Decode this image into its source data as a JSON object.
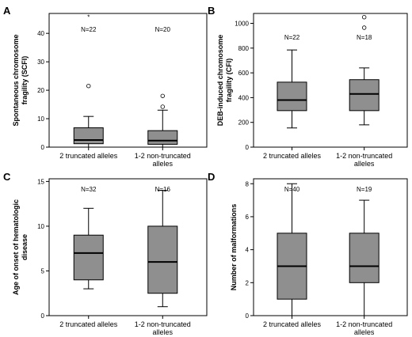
{
  "colors": {
    "box_fill": "#8f8f8f",
    "frame": "#000000",
    "background": "#ffffff"
  },
  "chart_data": [
    {
      "panel": "A",
      "type": "box",
      "ylabel": [
        "Spontaneous chromosome",
        "fragility (SCFI)"
      ],
      "ylim": [
        0,
        47
      ],
      "yticks": [
        0,
        10,
        20,
        30,
        40
      ],
      "categories": [
        [
          "2 truncated alleles"
        ],
        [
          "1-2 non-truncated",
          "alleles"
        ]
      ],
      "n_labels": [
        "N=22",
        "N=20"
      ],
      "boxes": [
        {
          "min": 0,
          "q1": 1.2,
          "median": 2.5,
          "q3": 6.8,
          "max": 10.8,
          "outliers": [
            21.5
          ],
          "extremes": [
            46
          ]
        },
        {
          "min": 0,
          "q1": 1.0,
          "median": 2.3,
          "q3": 5.8,
          "max": 13.0,
          "outliers": [
            14.2,
            18.0
          ],
          "extremes": []
        }
      ]
    },
    {
      "panel": "B",
      "type": "box",
      "ylabel": [
        "DEB-induced chromosome",
        "fragility (CFI)"
      ],
      "ylim": [
        0,
        1080
      ],
      "yticks": [
        0,
        200,
        400,
        600,
        800,
        1000
      ],
      "categories": [
        [
          "2 truncated alleles"
        ],
        [
          "1-2 non-truncated",
          "alleles"
        ]
      ],
      "n_labels": [
        "N=22",
        "N=18"
      ],
      "boxes": [
        {
          "min": 155,
          "q1": 295,
          "median": 380,
          "q3": 525,
          "max": 785,
          "outliers": [],
          "extremes": []
        },
        {
          "min": 180,
          "q1": 295,
          "median": 430,
          "q3": 545,
          "max": 640,
          "outliers": [
            965,
            1050
          ],
          "extremes": []
        }
      ]
    },
    {
      "panel": "C",
      "type": "box",
      "ylabel": [
        "Age of onset of hematologic",
        "disease"
      ],
      "ylim": [
        0,
        15.3
      ],
      "yticks": [
        0,
        5,
        10,
        15
      ],
      "categories": [
        [
          "2 truncated alleles"
        ],
        [
          "1-2 non-truncated",
          "alleles"
        ]
      ],
      "n_labels": [
        "N=32",
        "N=16"
      ],
      "boxes": [
        {
          "min": 3,
          "q1": 4,
          "median": 7,
          "q3": 9,
          "max": 12,
          "outliers": [],
          "extremes": []
        },
        {
          "min": 1,
          "q1": 2.5,
          "median": 6,
          "q3": 10,
          "max": 14,
          "outliers": [],
          "extremes": []
        }
      ]
    },
    {
      "panel": "D",
      "type": "box",
      "ylabel": [
        "Number of malformations"
      ],
      "ylim": [
        0,
        8.3
      ],
      "yticks": [
        0,
        2,
        4,
        6,
        8
      ],
      "categories": [
        [
          "2 truncated alleles"
        ],
        [
          "1-2 non-truncated",
          "alleles"
        ]
      ],
      "n_labels": [
        "N=40",
        "N=19"
      ],
      "boxes": [
        {
          "min": 0,
          "q1": 1,
          "median": 3,
          "q3": 5,
          "max": 8,
          "outliers": [],
          "extremes": []
        },
        {
          "min": 0,
          "q1": 2,
          "median": 3,
          "q3": 5,
          "max": 7,
          "outliers": [],
          "extremes": []
        }
      ]
    }
  ]
}
